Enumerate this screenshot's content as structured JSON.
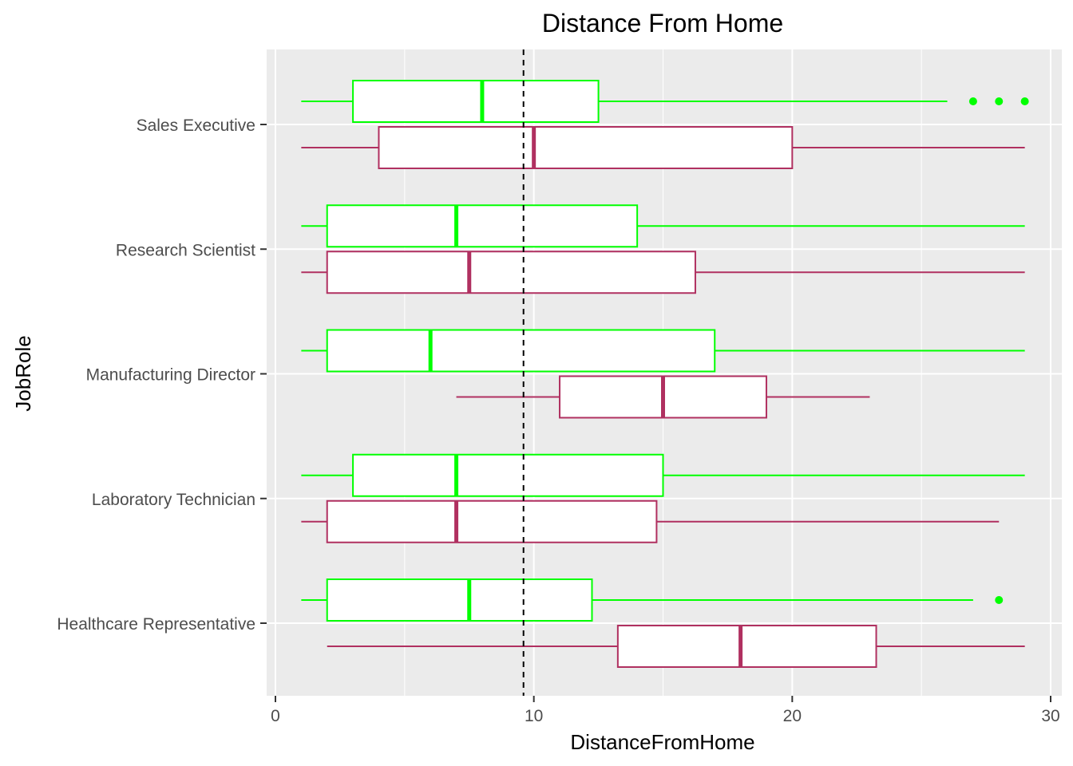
{
  "chart_data": {
    "type": "boxplot",
    "orientation": "horizontal",
    "title": "Distance From Home",
    "xlabel": "DistanceFromHome",
    "ylabel": "JobRole",
    "xlim": [
      0,
      30
    ],
    "x_ticks": [
      "0",
      "10",
      "20",
      "30"
    ],
    "grid": true,
    "legend": "none",
    "background": "#ebebeb",
    "reference_line": {
      "x": 9.6,
      "style": "dashed",
      "color": "#000000"
    },
    "series": [
      {
        "color": "#00ff00"
      },
      {
        "color": "#b03060"
      }
    ],
    "categories": [
      "Healthcare Representative",
      "Laboratory Technician",
      "Manufacturing Director",
      "Research Scientist",
      "Sales Executive"
    ],
    "boxes": [
      {
        "category": "Sales Executive",
        "series": 0,
        "min": 1,
        "q1": 3,
        "median": 8,
        "q3": 12.5,
        "max": 26,
        "outliers": [
          27,
          28,
          29
        ]
      },
      {
        "category": "Sales Executive",
        "series": 1,
        "min": 1,
        "q1": 4,
        "median": 10,
        "q3": 20,
        "max": 29,
        "outliers": []
      },
      {
        "category": "Research Scientist",
        "series": 0,
        "min": 1,
        "q1": 2,
        "median": 7,
        "q3": 14,
        "max": 29,
        "outliers": []
      },
      {
        "category": "Research Scientist",
        "series": 1,
        "min": 1,
        "q1": 2,
        "median": 7.5,
        "q3": 16.25,
        "max": 29,
        "outliers": []
      },
      {
        "category": "Manufacturing Director",
        "series": 0,
        "min": 1,
        "q1": 2,
        "median": 6,
        "q3": 17,
        "max": 29,
        "outliers": []
      },
      {
        "category": "Manufacturing Director",
        "series": 1,
        "min": 7,
        "q1": 11,
        "median": 15,
        "q3": 19,
        "max": 23,
        "outliers": []
      },
      {
        "category": "Laboratory Technician",
        "series": 0,
        "min": 1,
        "q1": 3,
        "median": 7,
        "q3": 15,
        "max": 29,
        "outliers": []
      },
      {
        "category": "Laboratory Technician",
        "series": 1,
        "min": 1,
        "q1": 2,
        "median": 7,
        "q3": 14.75,
        "max": 28,
        "outliers": []
      },
      {
        "category": "Healthcare Representative",
        "series": 0,
        "min": 1,
        "q1": 2,
        "median": 7.5,
        "q3": 12.25,
        "max": 27,
        "outliers": [
          28
        ]
      },
      {
        "category": "Healthcare Representative",
        "series": 1,
        "min": 2,
        "q1": 13.25,
        "median": 18,
        "q3": 23.25,
        "max": 29,
        "outliers": []
      }
    ]
  }
}
